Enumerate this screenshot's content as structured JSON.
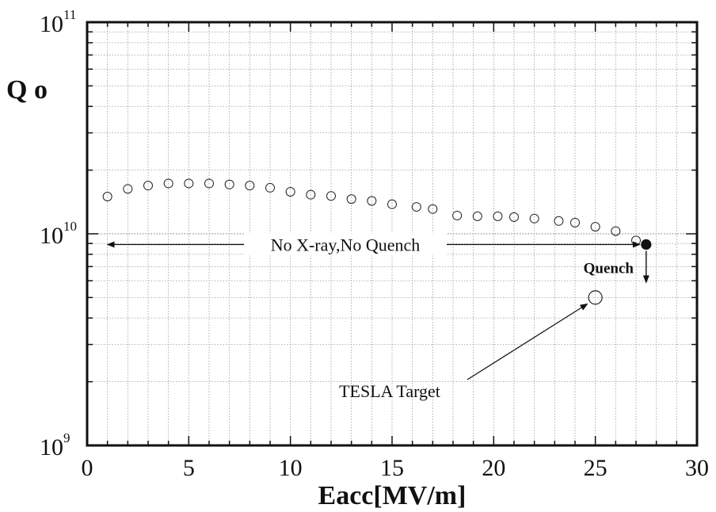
{
  "chart_data": {
    "type": "scatter",
    "xlabel": "Eacc[MV/m]",
    "ylabel": "Q o",
    "xlim": [
      0,
      30
    ],
    "ylim": [
      1000000000,
      100000000000
    ],
    "yscale": "log",
    "grid": true,
    "x_ticks": [
      "0",
      "5",
      "10",
      "15",
      "20",
      "25",
      "30"
    ],
    "y_ticks": [
      {
        "base": "10",
        "exp": "9"
      },
      {
        "base": "10",
        "exp": "10"
      },
      {
        "base": "10",
        "exp": "11"
      }
    ],
    "series": [
      {
        "marker": "open-circle",
        "points": [
          [
            1.0,
            15000000000
          ],
          [
            2.0,
            16300000000
          ],
          [
            3.0,
            16900000000
          ],
          [
            4.0,
            17300000000
          ],
          [
            5.0,
            17300000000
          ],
          [
            6.0,
            17300000000
          ],
          [
            7.0,
            17100000000
          ],
          [
            8.0,
            16900000000
          ],
          [
            9.0,
            16500000000
          ],
          [
            10.0,
            15800000000
          ],
          [
            11.0,
            15300000000
          ],
          [
            12.0,
            15100000000
          ],
          [
            13.0,
            14600000000
          ],
          [
            14.0,
            14300000000
          ],
          [
            15.0,
            13800000000
          ],
          [
            16.2,
            13400000000
          ],
          [
            17.0,
            13100000000
          ],
          [
            18.2,
            12200000000
          ],
          [
            19.2,
            12100000000
          ],
          [
            20.2,
            12100000000
          ],
          [
            21.0,
            12000000000
          ],
          [
            22.0,
            11800000000
          ],
          [
            23.2,
            11500000000
          ],
          [
            24.0,
            11300000000
          ],
          [
            25.0,
            10800000000
          ],
          [
            26.0,
            10300000000
          ],
          [
            27.0,
            9300000000
          ]
        ]
      },
      {
        "marker": "filled-circle",
        "points": [
          [
            27.5,
            8900000000
          ]
        ]
      }
    ],
    "target_point": {
      "x": 25.0,
      "y": 5000000000,
      "marker": "large-open-circle"
    },
    "annotations": {
      "range_label": "No X-ray,No Quench",
      "quench_label": "Quench",
      "target_label": "TESLA Target"
    }
  }
}
